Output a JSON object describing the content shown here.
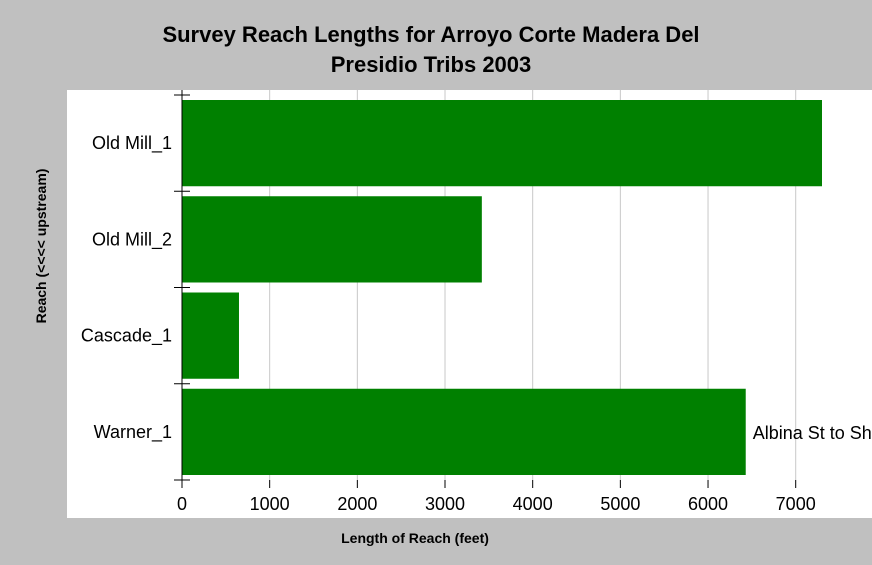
{
  "chart_data": {
    "type": "bar",
    "orientation": "horizontal",
    "title_lines": [
      "Survey Reach Lengths for Arroyo Corte Madera Del",
      "Presidio Tribs 2003"
    ],
    "xlabel": "Length of Reach (feet)",
    "ylabel": "Reach (<<<< upstream)",
    "categories": [
      "Old Mill_1",
      "Old Mill_2",
      "Cascade_1",
      "Warner_1"
    ],
    "values": [
      7300,
      3420,
      650,
      6430
    ],
    "xlim": [
      0,
      7300
    ],
    "xticks": [
      "0",
      "1000",
      "2000",
      "3000",
      "4000",
      "5000",
      "6000",
      "7000"
    ],
    "annotations": [
      {
        "category": "Warner_1",
        "text": "Albina St to Sh"
      }
    ],
    "grid": "vertical",
    "bar_color": "#008000",
    "plot_background": "#ffffff",
    "page_background": "#c0c0c0"
  }
}
